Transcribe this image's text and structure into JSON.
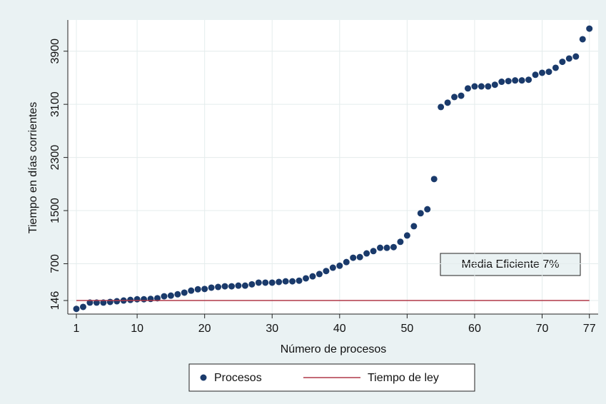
{
  "chart_data": {
    "type": "scatter",
    "x_label": "Número de procesos",
    "y_label": "Tiempo en días corrientes",
    "annotation": "Media Eficiente 7%",
    "x": [
      1,
      2,
      3,
      4,
      5,
      6,
      7,
      8,
      9,
      10,
      11,
      12,
      13,
      14,
      15,
      16,
      17,
      18,
      19,
      20,
      21,
      22,
      23,
      24,
      25,
      26,
      27,
      28,
      29,
      30,
      31,
      32,
      33,
      34,
      35,
      36,
      37,
      38,
      39,
      40,
      41,
      42,
      43,
      44,
      45,
      46,
      47,
      48,
      49,
      50,
      51,
      52,
      53,
      54,
      55,
      56,
      57,
      58,
      59,
      60,
      61,
      62,
      63,
      64,
      65,
      66,
      67,
      68,
      69,
      70,
      71,
      72,
      73,
      74,
      75,
      76,
      77
    ],
    "series": [
      {
        "name": "Procesos",
        "color": "#1a3a6b",
        "mark": "dot",
        "values": [
          20,
          50,
          115,
          115,
          115,
          125,
          135,
          146,
          155,
          165,
          165,
          170,
          180,
          210,
          220,
          240,
          265,
          295,
          315,
          320,
          340,
          350,
          360,
          360,
          370,
          370,
          390,
          415,
          415,
          415,
          425,
          435,
          435,
          445,
          480,
          510,
          545,
          590,
          640,
          670,
          725,
          790,
          800,
          855,
          890,
          940,
          940,
          950,
          1030,
          1125,
          1265,
          1460,
          1520,
          1975,
          3060,
          3125,
          3210,
          3230,
          3340,
          3370,
          3370,
          3370,
          3395,
          3440,
          3450,
          3460,
          3460,
          3470,
          3545,
          3575,
          3590,
          3650,
          3740,
          3790,
          3820,
          4080,
          4240
        ]
      },
      {
        "name": "Tiempo de ley",
        "color": "#b03848",
        "mark": "line",
        "values": [
          146,
          146,
          146,
          146,
          146,
          146,
          146,
          146,
          146,
          146,
          146,
          146,
          146,
          146,
          146,
          146,
          146,
          146,
          146,
          146,
          146,
          146,
          146,
          146,
          146,
          146,
          146,
          146,
          146,
          146,
          146,
          146,
          146,
          146,
          146,
          146,
          146,
          146,
          146,
          146,
          146,
          146,
          146,
          146,
          146,
          146,
          146,
          146,
          146,
          146,
          146,
          146,
          146,
          146,
          146,
          146,
          146,
          146,
          146,
          146,
          146,
          146,
          146,
          146,
          146,
          146,
          146,
          146,
          146,
          146,
          146,
          146,
          146,
          146,
          146,
          146,
          146
        ]
      }
    ],
    "xlim": [
      -0.27,
      78.3
    ],
    "ylim": [
      -58,
      4370
    ],
    "xticks": [
      1,
      10,
      20,
      30,
      40,
      50,
      60,
      70,
      77
    ],
    "yticks": [
      146,
      700,
      1500,
      2300,
      3100,
      3900
    ],
    "grid": true
  }
}
